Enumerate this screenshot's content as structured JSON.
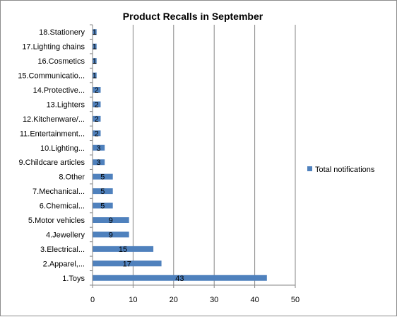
{
  "chart_data": {
    "type": "bar",
    "orientation": "horizontal",
    "title": "Product Recalls in September",
    "xlabel": "",
    "ylabel": "",
    "xlim": [
      0,
      50
    ],
    "xticks": [
      0,
      10,
      20,
      30,
      40,
      50
    ],
    "grid": "vertical major gridlines",
    "legend_position": "right",
    "bar_color": "#4F81BD",
    "categories": [
      "1.Toys",
      "2.Apparel,...",
      "3.Electrical...",
      "4.Jewellery",
      "5.Motor vehicles",
      "6.Chemical...",
      "7.Mechanical...",
      "8.Other",
      "9.Childcare articles",
      "10.Lighting...",
      "11.Entertainment...",
      "12.Kitchenware/...",
      "13.Lighters",
      "14.Protective...",
      "15.Communicatio...",
      "16.Cosmetics",
      "17.Lighting chains",
      "18.Stationery"
    ],
    "series": [
      {
        "name": "Total notifications",
        "values": [
          43,
          17,
          15,
          9,
          9,
          5,
          5,
          5,
          3,
          3,
          2,
          2,
          2,
          2,
          1,
          1,
          1,
          1
        ]
      }
    ]
  }
}
